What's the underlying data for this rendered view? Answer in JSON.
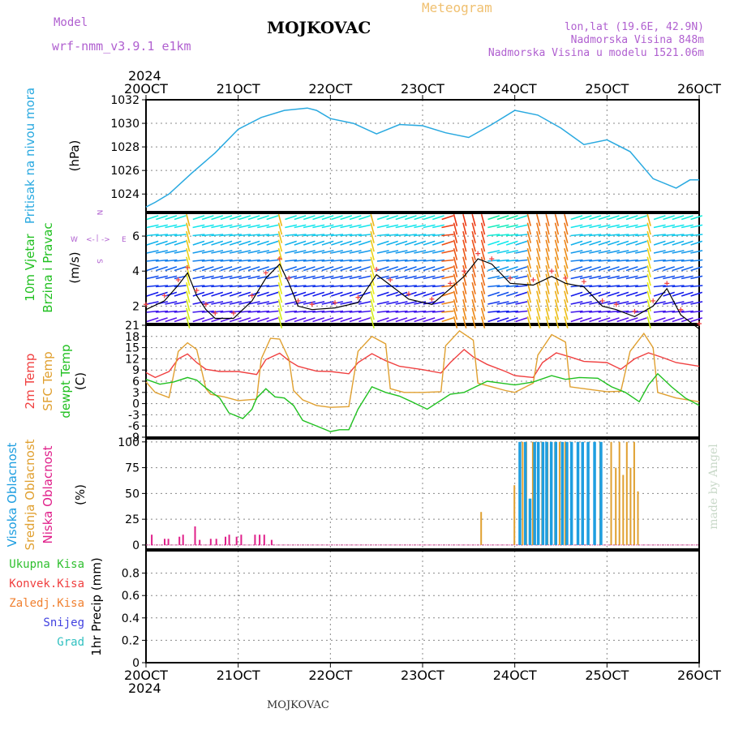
{
  "header": {
    "model_label": "Model",
    "model_name": "wrf-nmm_v3.9.1  e1km",
    "title": "MOJKOVAC",
    "subtitle": "Meteogram",
    "coords": "lon,lat (19.6E, 42.9N)",
    "elevation": "Nadmorska Visina 848m",
    "model_elevation": "Nadmorska Visina u modelu 1521.06m",
    "footer": "MOJKOVAC",
    "watermark": "made by Angel"
  },
  "colors": {
    "pressure": "#29a9e0",
    "temp2m": "#f04040",
    "sfc_temp": "#e0a030",
    "dewpt": "#20c020",
    "high_cloud": "#1e9ee0",
    "mid_cloud": "#e0a030",
    "low_cloud": "#e0208a",
    "label_purple": "#b060d0",
    "precip_total": "#30c030",
    "precip_conv": "#f04040",
    "precip_frz": "#f08030",
    "precip_snow": "#4040e0",
    "precip_hail": "#30c0c0"
  },
  "chart_data": [
    {
      "type": "line",
      "panel": "pressure",
      "ylabel_main": "Pritisak na nivou mora",
      "ylabel_unit": "(hPa)",
      "x_ticks": [
        "20OCT",
        "21OCT",
        "22OCT",
        "23OCT",
        "24OCT",
        "25OCT",
        "26OCT"
      ],
      "year_label": "2024",
      "ylim": [
        1022.5,
        1032
      ],
      "yticks": [
        1024,
        1026,
        1028,
        1030,
        1032
      ],
      "series": [
        {
          "x_days": [
            0,
            0.1,
            0.25,
            0.5,
            0.75,
            1.0,
            1.25,
            1.5,
            1.75,
            1.85,
            2.0,
            2.25,
            2.5,
            2.75,
            3.0,
            3.25,
            3.5,
            3.75,
            4.0,
            4.25,
            4.5,
            4.75,
            5.0,
            5.25,
            5.5,
            5.75,
            5.9,
            6.0
          ],
          "values": [
            1022.9,
            1023.3,
            1024.0,
            1025.8,
            1027.5,
            1029.5,
            1030.5,
            1031.1,
            1031.3,
            1031.1,
            1030.4,
            1030.0,
            1029.1,
            1029.9,
            1029.8,
            1029.2,
            1028.8,
            1029.9,
            1031.1,
            1030.7,
            1029.6,
            1028.2,
            1028.6,
            1027.6,
            1025.3,
            1024.5,
            1025.2,
            1025.2
          ]
        }
      ]
    },
    {
      "type": "line",
      "panel": "wind",
      "ylabel_main": "10m Vjetar",
      "ylabel_main2": "Brzina i Pravac",
      "ylabel_unit": "(m/s)",
      "compass": {
        "north": "N",
        "south": "S",
        "west": "W",
        "east": "E"
      },
      "ylim": [
        1,
        7.3
      ],
      "yticks": [
        2,
        4,
        6
      ],
      "series": [
        {
          "name": "speed",
          "x_days": [
            0,
            0.2,
            0.35,
            0.45,
            0.55,
            0.65,
            0.75,
            0.95,
            1.15,
            1.3,
            1.45,
            1.55,
            1.65,
            1.8,
            2.05,
            2.3,
            2.5,
            2.65,
            2.85,
            3.1,
            3.3,
            3.45,
            3.6,
            3.75,
            3.95,
            4.2,
            4.4,
            4.55,
            4.75,
            4.95,
            5.1,
            5.3,
            5.5,
            5.65,
            5.8,
            6.0
          ],
          "values": [
            1.8,
            2.3,
            3.2,
            3.9,
            2.6,
            1.8,
            1.3,
            1.3,
            2.3,
            3.6,
            4.4,
            3.3,
            2.0,
            1.8,
            1.9,
            2.2,
            3.8,
            3.2,
            2.4,
            2.1,
            3.0,
            3.7,
            4.7,
            4.4,
            3.3,
            3.2,
            3.7,
            3.3,
            3.1,
            2.0,
            1.8,
            1.4,
            2.0,
            3.0,
            1.5,
            0.7
          ]
        }
      ]
    },
    {
      "type": "line",
      "panel": "temperature",
      "ylabel_main": "2m Temp",
      "ylabel_main2": "SFC Temp",
      "ylabel_main3": "dewpt Temp",
      "ylabel_unit": "(C)",
      "ylim": [
        -9,
        21
      ],
      "yticks": [
        -9,
        -6,
        -3,
        0,
        3,
        6,
        9,
        12,
        15,
        18,
        21
      ],
      "series": [
        {
          "name": "2m Temp",
          "x_days": [
            0,
            0.1,
            0.25,
            0.35,
            0.45,
            0.55,
            0.65,
            0.8,
            1.0,
            1.2,
            1.3,
            1.45,
            1.55,
            1.65,
            1.85,
            2.0,
            2.2,
            2.3,
            2.45,
            2.6,
            2.75,
            3.0,
            3.2,
            3.3,
            3.45,
            3.55,
            3.7,
            3.9,
            4.0,
            4.2,
            4.3,
            4.45,
            4.6,
            4.75,
            5.0,
            5.15,
            5.3,
            5.45,
            5.6,
            5.75,
            6.0
          ],
          "values": [
            8.3,
            7.0,
            8.6,
            12.0,
            13.3,
            11.0,
            9.2,
            8.6,
            8.6,
            7.8,
            11.8,
            13.5,
            11.5,
            10.0,
            8.7,
            8.6,
            8.0,
            11.0,
            13.4,
            11.5,
            10.0,
            9.1,
            8.2,
            11.0,
            14.5,
            12.5,
            10.5,
            8.6,
            7.5,
            7.0,
            11.0,
            13.6,
            12.5,
            11.3,
            11.0,
            9.2,
            12.0,
            13.6,
            12.4,
            11.0,
            10.0
          ]
        },
        {
          "name": "SFC Temp",
          "x_days": [
            0,
            0.1,
            0.25,
            0.35,
            0.45,
            0.55,
            0.65,
            0.7,
            0.85,
            1.0,
            1.2,
            1.25,
            1.35,
            1.45,
            1.55,
            1.6,
            1.7,
            1.85,
            2.0,
            2.2,
            2.3,
            2.45,
            2.6,
            2.65,
            2.8,
            3.0,
            3.2,
            3.25,
            3.4,
            3.55,
            3.6,
            3.75,
            3.9,
            4.0,
            4.2,
            4.25,
            4.4,
            4.55,
            4.6,
            4.75,
            5.0,
            5.15,
            5.25,
            5.4,
            5.5,
            5.55,
            5.75,
            6.0
          ],
          "values": [
            5.8,
            3.0,
            1.6,
            14.0,
            16.3,
            14.5,
            4.0,
            2.5,
            1.8,
            0.8,
            1.2,
            12.0,
            17.5,
            17.3,
            12.0,
            3.5,
            1.0,
            -0.5,
            -1.0,
            -0.8,
            14.0,
            18.0,
            16.0,
            4.0,
            3.0,
            3.0,
            3.2,
            15.5,
            19.5,
            17.0,
            5.5,
            4.5,
            3.5,
            3.0,
            5.5,
            13.0,
            18.5,
            16.5,
            4.5,
            4.0,
            3.2,
            3.3,
            14.0,
            18.8,
            15.0,
            3.0,
            1.5,
            0.5
          ]
        },
        {
          "name": "dewpt Temp",
          "x_days": [
            0,
            0.15,
            0.3,
            0.45,
            0.55,
            0.65,
            0.8,
            0.9,
            1.05,
            1.15,
            1.2,
            1.3,
            1.4,
            1.5,
            1.6,
            1.7,
            1.8,
            1.9,
            2.0,
            2.1,
            2.2,
            2.3,
            2.45,
            2.6,
            2.75,
            2.9,
            3.05,
            3.3,
            3.45,
            3.55,
            3.7,
            3.85,
            4.0,
            4.2,
            4.4,
            4.55,
            4.7,
            4.9,
            5.05,
            5.2,
            5.35,
            5.45,
            5.55,
            5.7,
            5.85,
            6.0
          ],
          "values": [
            6.5,
            5.2,
            5.8,
            7.0,
            6.3,
            4.2,
            1.5,
            -2.5,
            -4.0,
            -1.5,
            1.5,
            4.0,
            1.8,
            1.5,
            -0.5,
            -4.5,
            -5.5,
            -6.5,
            -7.5,
            -7.0,
            -7.0,
            -1.5,
            4.5,
            3.0,
            2.0,
            0.3,
            -1.5,
            2.5,
            3.0,
            4.2,
            6.0,
            5.5,
            5.0,
            5.8,
            7.5,
            6.5,
            7.0,
            6.8,
            4.5,
            3.0,
            0.5,
            5.0,
            8.0,
            4.5,
            1.5,
            -0.5
          ]
        }
      ]
    },
    {
      "type": "bar",
      "panel": "cloud",
      "ylabel_main": "Visoka Oblacnost",
      "ylabel_main2": "Srednja Oblacnost",
      "ylabel_main3": "Niska Oblacnost",
      "ylabel_unit": "(%)",
      "ylim": [
        -4,
        103
      ],
      "yticks": [
        0,
        25,
        50,
        75,
        100
      ],
      "series": [
        {
          "name": "Niska Oblacnost",
          "x_days": [
            0.08,
            0.22,
            0.26,
            0.38,
            0.42,
            0.55,
            0.6,
            0.72,
            0.78,
            0.88,
            0.92,
            1.0,
            1.05,
            1.2,
            1.25,
            1.3,
            1.38
          ],
          "values": [
            10,
            6,
            6,
            8,
            10,
            18,
            5,
            6,
            6,
            8,
            10,
            8,
            10,
            10,
            10,
            10,
            5
          ]
        },
        {
          "name": "Srednja Oblacnost",
          "x_days": [
            3.64,
            4.0,
            4.09,
            4.13,
            4.2,
            4.26,
            4.3,
            4.36,
            4.44,
            4.49,
            4.55,
            4.62,
            4.69,
            4.8,
            4.93,
            5.05,
            5.1,
            5.14,
            5.18,
            5.22,
            5.26,
            5.3,
            5.34
          ],
          "values": [
            32,
            58,
            100,
            100,
            100,
            100,
            100,
            100,
            100,
            100,
            100,
            100,
            100,
            100,
            100,
            100,
            75,
            100,
            68,
            100,
            75,
            100,
            52
          ]
        },
        {
          "name": "Visoka Oblacnost",
          "x_days": [
            4.04,
            4.1,
            4.15,
            4.2,
            4.24,
            4.29,
            4.33,
            4.38,
            4.43,
            4.5,
            4.55,
            4.6,
            4.67,
            4.72,
            4.78,
            4.85,
            4.92
          ],
          "values": [
            100,
            100,
            45,
            100,
            100,
            100,
            100,
            100,
            100,
            100,
            100,
            100,
            100,
            100,
            100,
            100,
            100
          ]
        }
      ]
    },
    {
      "type": "line",
      "panel": "precip",
      "legend_items": [
        "Ukupna Kisa",
        "Konvek.Kisa",
        "Zaledj.Kisa",
        "Snijeg",
        "Grad"
      ],
      "ylabel_unit": "1hr Precip (mm)",
      "ylim": [
        0,
        1
      ],
      "yticks": [
        0.0,
        0.2,
        0.4,
        0.6,
        0.8
      ],
      "ytick_labels": [
        "0",
        "0.2",
        "0.4",
        "0.6",
        "0.8"
      ],
      "series": []
    }
  ]
}
